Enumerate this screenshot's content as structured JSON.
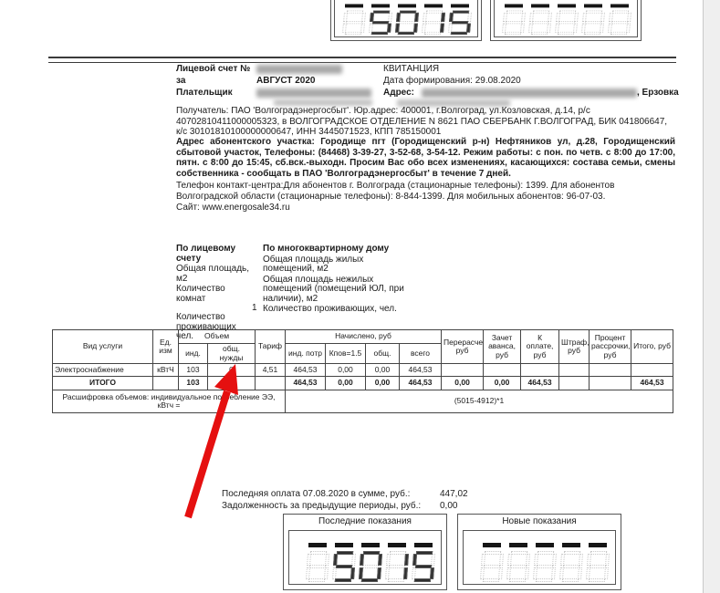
{
  "header": {
    "account_label": "Лицевой счет №",
    "period_label": "за",
    "period_value": "АВГУСТ 2020",
    "payer_label": "Плательщик",
    "receipt_title": "КВИТАНЦИЯ",
    "formed_label": "Дата формирования: 29.08.2020",
    "address_label": "Адрес:",
    "address_suffix": ", Ерзовка"
  },
  "paragraphs": {
    "recipient": "Получатель: ПАО 'Волгоградэнергосбыт'. Юр.адрес: 400001, г.Волгоград, ул.Козловская, д.14, р/с 40702810411000005323, в ВОЛГОГРАДСКОЕ ОТДЕЛЕНИЕ N 8621 ПАО СБЕРБАНК Г.ВОЛГОГРАД, БИК 041806647, к/с 30101810100000000647, ИНН 3445071523, КПП 785150001",
    "branch": "Адрес абонентского участка: Городище пгт (Городищенский р-н) Нефтяников ул, д.28, Городищенский сбытовой участок, Телефоны: (84468) 3-39-27, 3-52-68, 3-54-12. Режим работы: с пон. по четв. с 8:00 до 17:00, пятн. с 8:00 до 15:45, сб.вск.-выходн. Просим Вас обо всех изменениях, касающихся: состава семьи,  смены собственника - сообщать в ПАО 'Волгоградэнергосбыт' в течение 7 дней.",
    "contact": "Телефон контакт-центра:Для абонентов г. Волгограда (стационарные телефоны):  1399. Для абонентов  Волгоградской области (стационарные телефоны):  8-844-1399. Для мобильных абонентов:  96-07-03.",
    "site": "Сайт: www.energosale34.ru"
  },
  "account_info": {
    "left_title": "По лицевому счету",
    "left_rows": [
      "Общая площадь, м2",
      "Количество комнат",
      "Количество проживающих чел."
    ],
    "residents_value": "1",
    "right_title": "По многоквартирному дому",
    "right_rows": [
      "Общая площадь жилых помещений, м2",
      "Общая площадь нежилых помещений (помещений ЮЛ, при наличии), м2",
      "Количество проживающих, чел."
    ]
  },
  "charges_table": {
    "headers": {
      "service": "Вид услуги",
      "unit": "Ед. изм",
      "volume": "Объем",
      "volume_ind": "инд.",
      "volume_common": "общ. нужды",
      "tariff": "Тариф",
      "accrued": "Начислено, руб",
      "accrued_ind": "инд. потр",
      "accrued_k": "Кпов=1.5",
      "accrued_common": "общ.",
      "accrued_total": "всего",
      "recalc": "Перерасчет, руб",
      "advance": "Зачет аванса, руб",
      "to_pay": "К оплате, руб",
      "fine": "Штраф, руб",
      "installment": "Процент рассрочки, руб",
      "total": "Итого, руб"
    },
    "rows": [
      {
        "service": "Электроснабжение",
        "unit": "кВтЧ",
        "volume_ind": "103",
        "volume_common": "0",
        "tariff": "4,51",
        "accrued_ind": "464,53",
        "accrued_k": "0,00",
        "accrued_common": "0,00",
        "accrued_total": "464,53",
        "recalc": "",
        "advance": "",
        "to_pay": "",
        "fine": "",
        "installment": "",
        "total": ""
      },
      {
        "service": "ИТОГО",
        "unit": "",
        "volume_ind": "103",
        "volume_common": "0",
        "tariff": "",
        "accrued_ind": "464,53",
        "accrued_k": "0,00",
        "accrued_common": "0,00",
        "accrued_total": "464,53",
        "recalc": "0,00",
        "advance": "0,00",
        "to_pay": "464,53",
        "fine": "",
        "installment": "",
        "total": "464,53"
      }
    ],
    "note_label": "Расшифровка объемов: индивидуальное потребление ЭЭ, кВтч =",
    "note_formula": "(5015-4912)*1"
  },
  "payment": {
    "last_label": "Последняя оплата 07.08.2020 в сумме, руб.:",
    "last_value": "447,02",
    "debt_label": "Задолженность за предыдущие периоды, руб.:",
    "debt_value": "0,00"
  },
  "meters": {
    "last": {
      "title": "Последние показания",
      "value": "5015"
    },
    "new": {
      "title": "Новые показания",
      "value": ""
    }
  },
  "annotations": {
    "arrow_color": "#e51010"
  }
}
